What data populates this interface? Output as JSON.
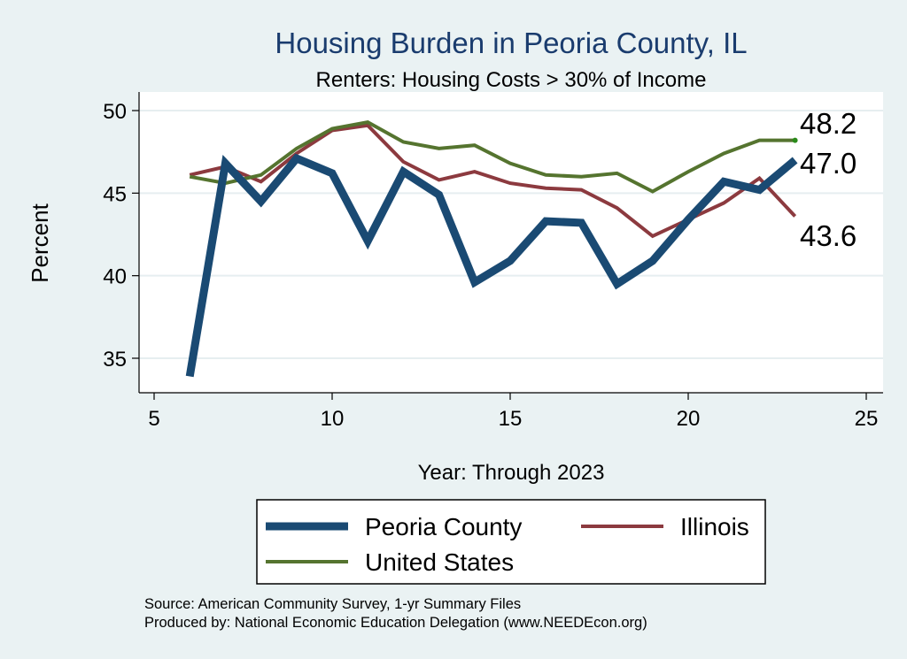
{
  "chart_data": {
    "type": "line",
    "title": "Housing Burden in Peoria County, IL",
    "subtitle": "Renters: Housing Costs > 30% of Income",
    "xlabel": "Year: Through 2023",
    "ylabel": "Percent",
    "xlim": [
      5,
      25
    ],
    "ylim": [
      33.5,
      51
    ],
    "xticks": [
      5,
      10,
      15,
      20,
      25
    ],
    "yticks": [
      35,
      40,
      45,
      50
    ],
    "grid": true,
    "legend_position": "bottom",
    "series": [
      {
        "name": "Peoria County",
        "color": "#1a4a73",
        "x": [
          6,
          7,
          8,
          9,
          10,
          11,
          12,
          13,
          14,
          15,
          16,
          17,
          18,
          19,
          20,
          21,
          22,
          23
        ],
        "values": [
          33.9,
          46.8,
          44.5,
          47.1,
          46.2,
          42.1,
          46.3,
          44.9,
          39.6,
          40.9,
          43.3,
          43.2,
          39.5,
          40.9,
          43.4,
          45.7,
          45.2,
          47.0
        ],
        "end_label": "47.0"
      },
      {
        "name": "Illinois",
        "color": "#8c3a3f",
        "x": [
          6,
          7,
          8,
          9,
          10,
          11,
          12,
          13,
          14,
          15,
          16,
          17,
          18,
          19,
          20,
          21,
          22,
          23
        ],
        "values": [
          46.1,
          46.6,
          45.7,
          47.4,
          48.8,
          49.1,
          46.9,
          45.8,
          46.3,
          45.6,
          45.3,
          45.2,
          44.1,
          42.4,
          43.4,
          44.4,
          45.9,
          43.6
        ],
        "end_label": "43.6"
      },
      {
        "name": "United States",
        "color": "#55742f",
        "x": [
          6,
          7,
          8,
          9,
          10,
          11,
          12,
          13,
          14,
          15,
          16,
          17,
          18,
          19,
          20,
          21,
          22,
          23
        ],
        "values": [
          46.0,
          45.6,
          46.1,
          47.7,
          48.9,
          49.3,
          48.1,
          47.7,
          47.9,
          46.8,
          46.1,
          46.0,
          46.2,
          45.1,
          46.3,
          47.4,
          48.2,
          48.2
        ],
        "end_label": "48.2"
      }
    ],
    "source": "Source: American Community Survey, 1-yr Summary Files",
    "produced_by": "Produced by: National Economic Education Delegation (www.NEEDEcon.org)"
  }
}
